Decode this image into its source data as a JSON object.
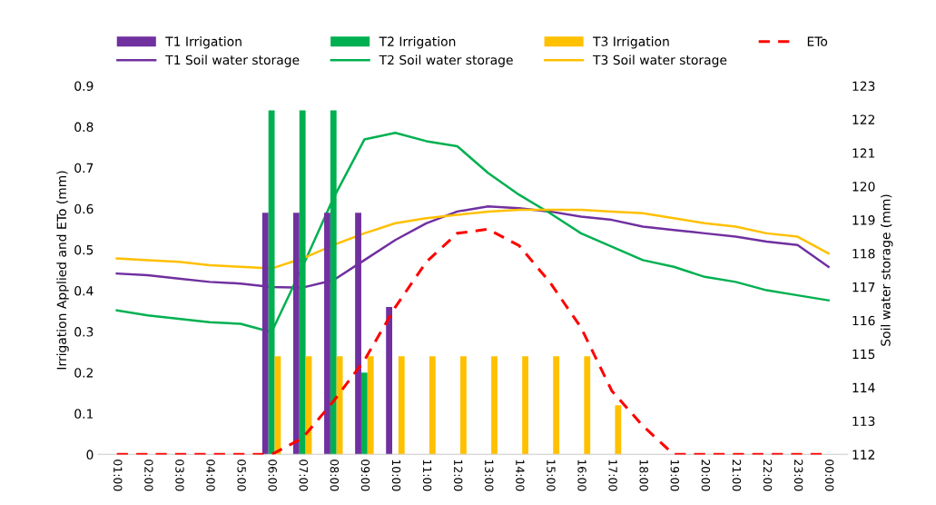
{
  "chart_data": {
    "type": "bar",
    "categories": [
      "01:00",
      "02:00",
      "03:00",
      "04:00",
      "05:00",
      "06:00",
      "07:00",
      "08:00",
      "09:00",
      "10:00",
      "11:00",
      "12:00",
      "13:00",
      "14:00",
      "15:00",
      "16:00",
      "17:00",
      "18:00",
      "19:00",
      "20:00",
      "21:00",
      "22:00",
      "23:00",
      "00:00"
    ],
    "ylabel": "Irrigation Applied and ETo (mm)",
    "y2label": "Soil water storage (mm)",
    "ylim": [
      0,
      0.9
    ],
    "yticks": [
      0,
      0.1,
      0.2,
      0.3,
      0.4,
      0.5,
      0.6,
      0.7,
      0.8,
      0.9
    ],
    "y2lim": [
      112,
      123
    ],
    "y2ticks": [
      112,
      113,
      114,
      115,
      116,
      117,
      118,
      119,
      120,
      121,
      122,
      123
    ],
    "grid": false,
    "legend": "top",
    "series": [
      {
        "name": "T1 Irrigation",
        "color": "#7030a0",
        "values": [
          null,
          null,
          null,
          null,
          null,
          0.59,
          0.59,
          0.59,
          0.59,
          0.36,
          null,
          null,
          null,
          null,
          null,
          null,
          null,
          null,
          null,
          null,
          null,
          null,
          null,
          null
        ]
      },
      {
        "name": "T2 Irrigation",
        "color": "#00b050",
        "values": [
          null,
          null,
          null,
          null,
          null,
          0.84,
          0.84,
          0.84,
          0.2,
          null,
          null,
          null,
          null,
          null,
          null,
          null,
          null,
          null,
          null,
          null,
          null,
          null,
          null,
          null
        ]
      },
      {
        "name": "T3 Irrigation",
        "color": "#ffc000",
        "values": [
          null,
          null,
          null,
          null,
          null,
          0.24,
          0.24,
          0.24,
          0.24,
          0.24,
          0.24,
          0.24,
          0.24,
          0.24,
          0.24,
          0.24,
          0.12,
          null,
          null,
          null,
          null,
          null,
          null,
          null
        ]
      },
      {
        "name": "ETo",
        "type": "line",
        "line_style": "dashed",
        "color": "#ff0000",
        "values": [
          0,
          0,
          0,
          0,
          0,
          0,
          0.04,
          0.13,
          0.23,
          0.36,
          0.47,
          0.54,
          0.55,
          0.51,
          0.42,
          0.31,
          0.155,
          0.07,
          0,
          0,
          0,
          0,
          0,
          0
        ]
      },
      {
        "name": "T1 Soil water storage",
        "type": "line",
        "axis": "y2",
        "line_style": "solid",
        "color": "#7030a0",
        "values": [
          117.4,
          117.35,
          117.25,
          117.15,
          117.1,
          117.0,
          116.98,
          117.2,
          117.8,
          118.4,
          118.9,
          119.25,
          119.4,
          119.35,
          119.25,
          119.1,
          119.0,
          118.8,
          118.7,
          118.6,
          118.5,
          118.35,
          118.25,
          117.6
        ]
      },
      {
        "name": "T2 Soil water storage",
        "type": "line",
        "axis": "y2",
        "line_style": "solid",
        "color": "#00b050",
        "values": [
          116.3,
          116.15,
          116.05,
          115.95,
          115.9,
          115.65,
          117.6,
          119.65,
          121.4,
          121.6,
          121.35,
          121.2,
          120.4,
          119.75,
          119.2,
          118.6,
          118.2,
          117.8,
          117.6,
          117.3,
          117.15,
          116.9,
          116.75,
          116.6
        ]
      },
      {
        "name": "T3 Soil water storage",
        "type": "line",
        "axis": "y2",
        "line_style": "solid",
        "color": "#ffc000",
        "values": [
          117.85,
          117.8,
          117.75,
          117.65,
          117.6,
          117.55,
          117.85,
          118.25,
          118.6,
          118.9,
          119.05,
          119.15,
          119.25,
          119.3,
          119.3,
          119.3,
          119.25,
          119.2,
          119.05,
          118.9,
          118.8,
          118.6,
          118.5,
          118.0
        ]
      }
    ]
  }
}
